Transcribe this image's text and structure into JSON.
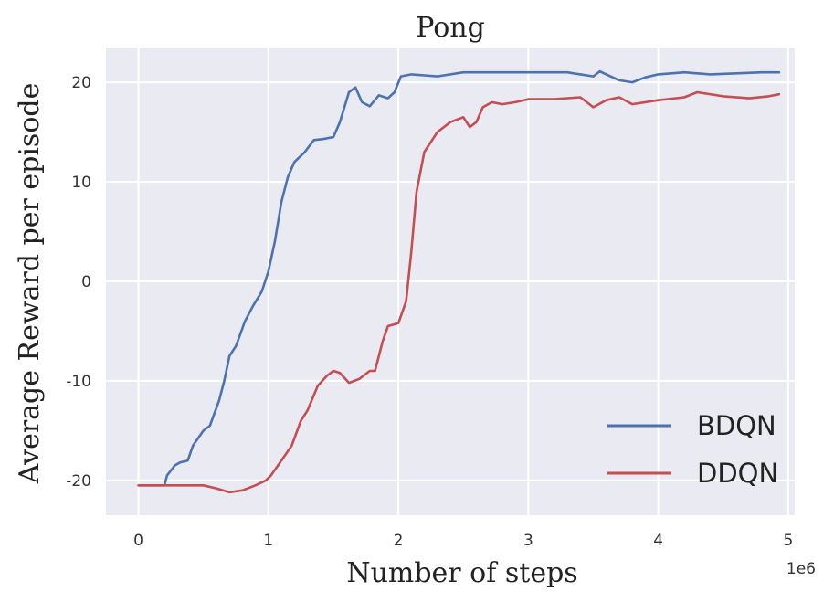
{
  "chart_data": {
    "type": "line",
    "title": "Pong",
    "xlabel": "Number of steps",
    "ylabel": "Average Reward per episode",
    "x_offset_label": "1e6",
    "xlim": [
      -0.25,
      5.05
    ],
    "ylim": [
      -23.5,
      23.5
    ],
    "x_ticks": [
      0,
      1,
      2,
      3,
      4,
      5
    ],
    "x_tick_labels": [
      "0",
      "1",
      "2",
      "3",
      "4",
      "5"
    ],
    "y_ticks": [
      -20,
      -10,
      0,
      10,
      20
    ],
    "y_tick_labels": [
      "-20",
      "-10",
      "0",
      "10",
      "20"
    ],
    "grid": true,
    "legend_position": "bottom-right",
    "background": "#EAEAF2",
    "series": [
      {
        "name": "BDQN",
        "color": "#4C72B0",
        "x": [
          0,
          0.1,
          0.2,
          0.22,
          0.28,
          0.32,
          0.38,
          0.42,
          0.5,
          0.55,
          0.62,
          0.66,
          0.7,
          0.75,
          0.82,
          0.88,
          0.95,
          1.0,
          1.05,
          1.1,
          1.15,
          1.2,
          1.28,
          1.35,
          1.42,
          1.5,
          1.55,
          1.62,
          1.67,
          1.72,
          1.78,
          1.85,
          1.92,
          1.97,
          2.02,
          2.1,
          2.2,
          2.3,
          2.5,
          2.7,
          3.0,
          3.3,
          3.5,
          3.55,
          3.6,
          3.7,
          3.8,
          3.9,
          4.0,
          4.2,
          4.4,
          4.6,
          4.8,
          4.93
        ],
        "y": [
          -20.5,
          -20.5,
          -20.5,
          -19.5,
          -18.5,
          -18.2,
          -18.0,
          -16.5,
          -15.0,
          -14.5,
          -12.0,
          -10.0,
          -7.5,
          -6.5,
          -4.0,
          -2.5,
          -1.0,
          1.0,
          4.0,
          8.0,
          10.5,
          12.0,
          13.0,
          14.2,
          14.3,
          14.5,
          16.0,
          19.0,
          19.5,
          18.0,
          17.6,
          18.7,
          18.4,
          19.0,
          20.6,
          20.8,
          20.7,
          20.6,
          21.0,
          21.0,
          21.0,
          21.0,
          20.6,
          21.1,
          20.8,
          20.2,
          20.0,
          20.5,
          20.8,
          21.0,
          20.8,
          20.9,
          21.0,
          21.0
        ]
      },
      {
        "name": "DDQN",
        "color": "#C44E52",
        "x": [
          0,
          0.3,
          0.5,
          0.6,
          0.7,
          0.8,
          0.9,
          0.98,
          1.02,
          1.1,
          1.18,
          1.25,
          1.3,
          1.38,
          1.45,
          1.5,
          1.55,
          1.62,
          1.7,
          1.78,
          1.82,
          1.88,
          1.92,
          2.0,
          2.06,
          2.1,
          2.14,
          2.2,
          2.3,
          2.4,
          2.5,
          2.55,
          2.6,
          2.65,
          2.72,
          2.8,
          2.9,
          3.0,
          3.2,
          3.4,
          3.5,
          3.6,
          3.7,
          3.8,
          4.0,
          4.2,
          4.3,
          4.5,
          4.7,
          4.85,
          4.93
        ],
        "y": [
          -20.5,
          -20.5,
          -20.5,
          -20.8,
          -21.2,
          -21.0,
          -20.5,
          -20.0,
          -19.5,
          -18.0,
          -16.5,
          -14.0,
          -13.0,
          -10.5,
          -9.5,
          -9.0,
          -9.2,
          -10.2,
          -9.8,
          -9.0,
          -9.0,
          -6.0,
          -4.5,
          -4.2,
          -2.0,
          3.0,
          9.0,
          13.0,
          15.0,
          16.0,
          16.5,
          15.5,
          16.0,
          17.5,
          18.0,
          17.8,
          18.0,
          18.3,
          18.3,
          18.5,
          17.5,
          18.2,
          18.5,
          17.8,
          18.2,
          18.5,
          19.0,
          18.6,
          18.4,
          18.6,
          18.8
        ]
      }
    ]
  }
}
